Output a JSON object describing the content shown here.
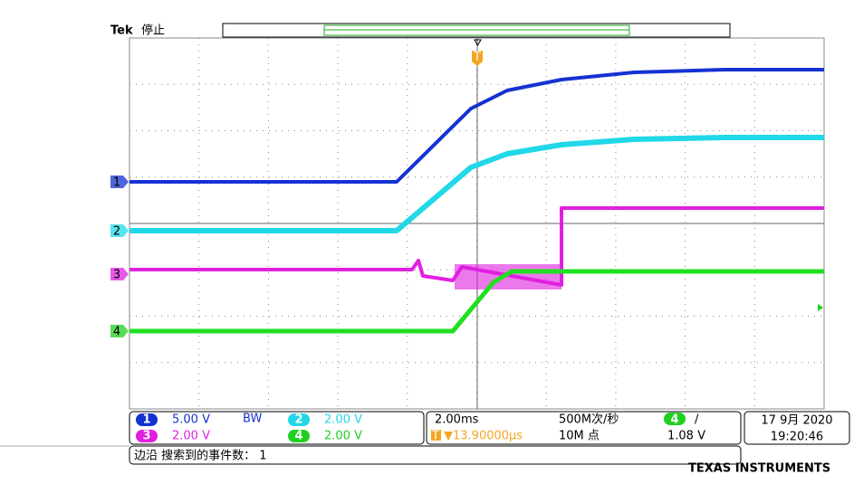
{
  "header": {
    "brand": "Tek",
    "status": "停止"
  },
  "markers": {
    "trigger": "T",
    "channels": [
      "1",
      "2",
      "3",
      "4"
    ]
  },
  "channels": [
    {
      "number": "1",
      "scale": "5.00 V",
      "bandwidth": "BW"
    },
    {
      "number": "2",
      "scale": "2.00 V"
    },
    {
      "number": "3",
      "scale": "2.00 V"
    },
    {
      "number": "4",
      "scale": "2.00 V"
    }
  ],
  "timebase": {
    "scale": "2.00ms",
    "trigger_position": "T",
    "trigger_delay": "▼13.90000µs"
  },
  "acquisition": {
    "sample_rate": "500M次/秒",
    "record_length": "10M 点"
  },
  "trigger": {
    "channel": "4",
    "slope": "/",
    "level": "1.08 V"
  },
  "datetime": {
    "date": "17 9月 2020",
    "time": "19:20:46"
  },
  "search": "边沿 搜索到的事件数： 1",
  "footer": "TEXAS INSTRUMENTS"
}
